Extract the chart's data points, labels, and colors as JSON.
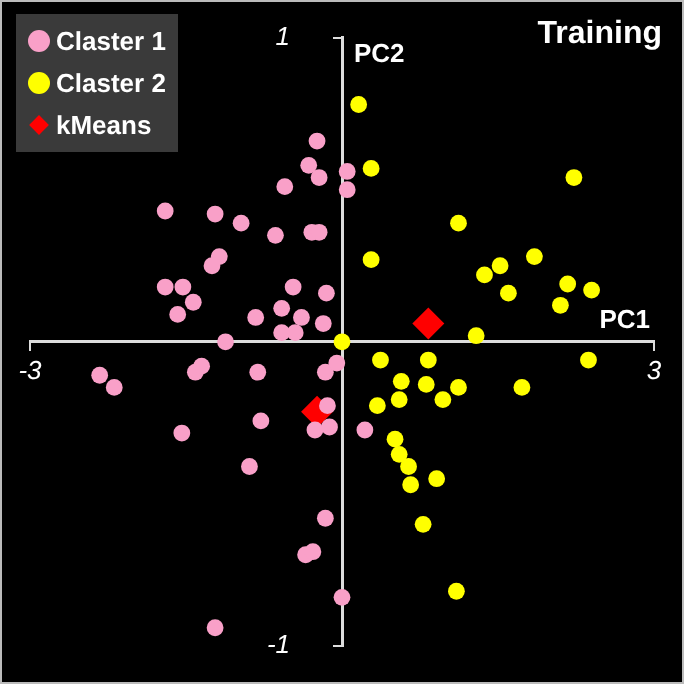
{
  "chart_data": {
    "type": "scatter",
    "title": "Training",
    "xlabel": "PC1",
    "ylabel": "PC2",
    "xlim": [
      -3,
      3
    ],
    "ylim": [
      -1,
      1
    ],
    "xticks": [
      -3,
      3
    ],
    "yticks": [
      -1,
      1
    ],
    "grid": false,
    "legend": "top left",
    "marker": "circle",
    "series": [
      {
        "name": "Claster 1",
        "color": "#f9a0c8",
        "x": [
          -0.24,
          -0.32,
          -0.22,
          -0.55,
          0.05,
          0.05,
          -1.7,
          -1.22,
          -0.97,
          -0.64,
          -0.29,
          -0.22,
          -1.18,
          -1.25,
          -1.7,
          -1.53,
          -1.43,
          -0.47,
          -0.15,
          -1.58,
          -0.83,
          -0.58,
          -0.39,
          -0.18,
          -0.58,
          -0.45,
          -1.12,
          -2.33,
          -2.19,
          -1.41,
          -1.35,
          -0.81,
          -0.16,
          -0.05,
          -1.54,
          -0.78,
          -0.26,
          -0.12,
          -0.14,
          -0.89,
          -0.16,
          -0.35,
          -0.28,
          0.0,
          -1.22,
          0.22
        ],
        "values": [
          0.66,
          0.58,
          0.54,
          0.51,
          0.56,
          0.5,
          0.43,
          0.42,
          0.39,
          0.35,
          0.36,
          0.36,
          0.28,
          0.25,
          0.18,
          0.18,
          0.13,
          0.18,
          0.16,
          0.09,
          0.08,
          0.11,
          0.08,
          0.06,
          0.03,
          0.03,
          0.0,
          -0.11,
          -0.15,
          -0.1,
          -0.08,
          -0.1,
          -0.1,
          -0.07,
          -0.3,
          -0.26,
          -0.29,
          -0.28,
          -0.21,
          -0.41,
          -0.58,
          -0.7,
          -0.69,
          -0.84,
          -0.94,
          -0.29
        ]
      },
      {
        "name": "Claster 2",
        "color": "#ffff00",
        "x": [
          0.16,
          0.28,
          2.23,
          1.12,
          0.28,
          1.85,
          1.52,
          1.37,
          2.17,
          2.4,
          1.6,
          2.1,
          1.29,
          0.37,
          0.83,
          2.37,
          0.57,
          0.81,
          1.12,
          1.73,
          0.97,
          0.34,
          0.55,
          0.51,
          0.55,
          0.64,
          0.66,
          0.91,
          0.78,
          1.1,
          0.0
        ],
        "values": [
          0.78,
          0.57,
          0.54,
          0.39,
          0.27,
          0.28,
          0.25,
          0.22,
          0.19,
          0.17,
          0.16,
          0.12,
          0.02,
          -0.06,
          -0.06,
          -0.06,
          -0.13,
          -0.14,
          -0.15,
          -0.15,
          -0.19,
          -0.21,
          -0.19,
          -0.32,
          -0.37,
          -0.41,
          -0.47,
          -0.45,
          -0.6,
          -0.82,
          0.0
        ]
      },
      {
        "name": "kMeans",
        "color": "#ff0000",
        "marker": "diamond",
        "x": [
          0.83,
          -0.24
        ],
        "values": [
          0.06,
          -0.23
        ]
      }
    ]
  }
}
